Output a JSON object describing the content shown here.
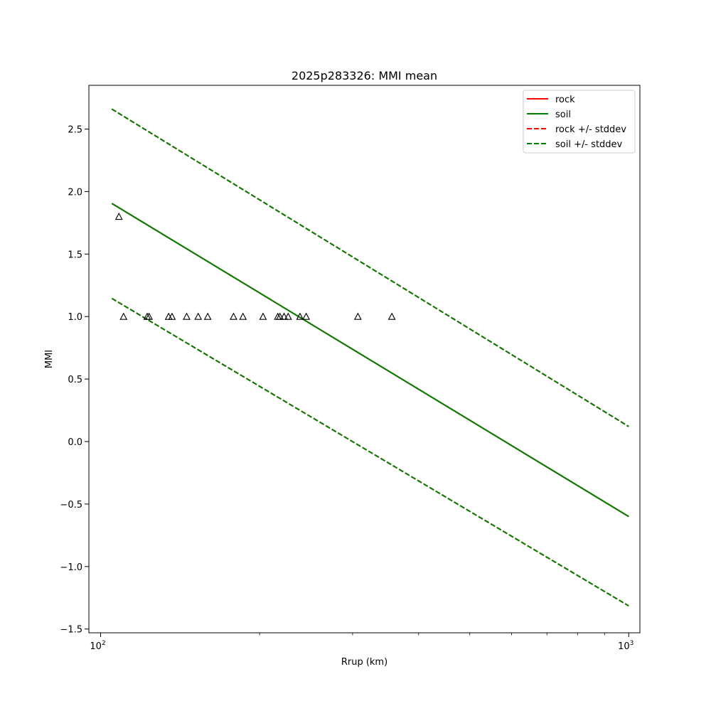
{
  "chart_data": {
    "type": "line",
    "title": "2025p283326: MMI mean",
    "xlabel": "Rrup (km)",
    "ylabel": "MMI",
    "xscale": "log",
    "xlim": [
      95,
      1050
    ],
    "ylim": [
      -1.53,
      2.85
    ],
    "x_ticks": [
      {
        "value": 100,
        "base": "10",
        "exp": "2"
      },
      {
        "value": 1000,
        "base": "10",
        "exp": "3"
      }
    ],
    "y_ticks": [
      -1.5,
      -1.0,
      -0.5,
      0.0,
      0.5,
      1.0,
      1.5,
      2.0,
      2.5
    ],
    "y_tick_labels": [
      "−1.5",
      "−1.0",
      "−0.5",
      "0.0",
      "0.5",
      "1.0",
      "1.5",
      "2.0",
      "2.5"
    ],
    "legend": {
      "placement": "top-right",
      "entries": [
        {
          "label": "rock",
          "color": "#ff0000",
          "dashed": false
        },
        {
          "label": "soil",
          "color": "#008000",
          "dashed": false
        },
        {
          "label": "rock +/- stddev",
          "color": "#ff0000",
          "dashed": true
        },
        {
          "label": "soil +/- stddev",
          "color": "#008000",
          "dashed": true
        }
      ]
    },
    "series": [
      {
        "name": "rock",
        "color": "#ff0000",
        "dashed": false,
        "x": [
          105,
          1000
        ],
        "y": [
          1.905,
          -0.6
        ]
      },
      {
        "name": "soil",
        "color": "#008000",
        "dashed": false,
        "x": [
          105,
          1000
        ],
        "y": [
          1.905,
          -0.6
        ]
      },
      {
        "name": "rock +/- stddev",
        "color": "#ff0000",
        "dashed": true,
        "x": [
          105,
          1000
        ],
        "y": [
          2.66,
          0.12
        ]
      },
      {
        "name": "rock +/- stddev",
        "color": "#ff0000",
        "dashed": true,
        "x": [
          105,
          1000
        ],
        "y": [
          1.145,
          -1.315
        ]
      },
      {
        "name": "soil +/- stddev",
        "color": "#008000",
        "dashed": true,
        "x": [
          105,
          1000
        ],
        "y": [
          2.66,
          0.12
        ]
      },
      {
        "name": "soil +/- stddev",
        "color": "#008000",
        "dashed": true,
        "x": [
          105,
          1000
        ],
        "y": [
          1.145,
          -1.315
        ]
      }
    ],
    "observations": {
      "marker": "triangle",
      "x": [
        108.3,
        110.5,
        122.5,
        123.5,
        134.5,
        136.5,
        145.5,
        153,
        159.5,
        178.5,
        186,
        203,
        216.5,
        218.5,
        222.5,
        226.5,
        238.5,
        245,
        307,
        356
      ],
      "y": [
        1.8,
        1.0,
        1.0,
        1.0,
        1.0,
        1.0,
        1.0,
        1.0,
        1.0,
        1.0,
        1.0,
        1.0,
        1.0,
        1.0,
        1.0,
        1.0,
        1.0,
        1.0,
        1.0,
        1.0
      ]
    },
    "grid": false
  }
}
